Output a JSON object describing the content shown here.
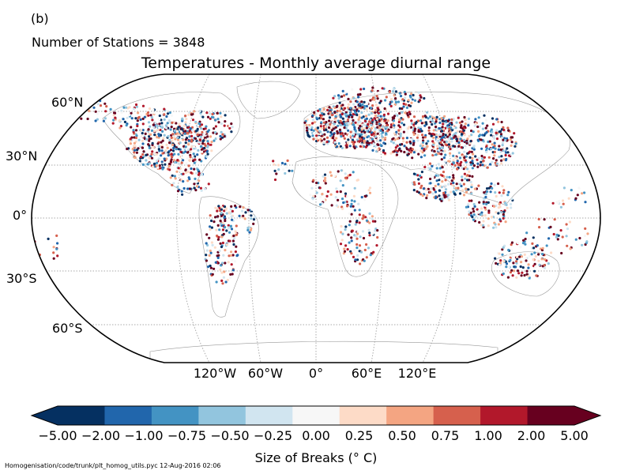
{
  "panel_label": "(b)",
  "stations_text": "Number of Stations = 3848",
  "title": "Temperatures - Monthly average diurnal range",
  "lat_labels": [
    "60°N",
    "30°N",
    "0°",
    "30°S",
    "60°S"
  ],
  "lon_labels": [
    "120°W",
    "60°W",
    "0°",
    "60°E",
    "120°E"
  ],
  "colorbar": {
    "label": "Size of Breaks (° C)",
    "ticks": [
      "−5.00",
      "−2.00",
      "−1.00",
      "−0.75",
      "−0.50",
      "−0.25",
      "0.00",
      "0.25",
      "0.50",
      "0.75",
      "1.00",
      "2.00",
      "5.00"
    ],
    "colors": [
      "#053061",
      "#2166ac",
      "#4393c3",
      "#92c5de",
      "#d1e5f0",
      "#f7f7f7",
      "#fddbc7",
      "#f4a582",
      "#d6604d",
      "#b2182b",
      "#67001f",
      "#67001f"
    ],
    "extend": "both"
  },
  "footer": "Homogenisation/code/trunk/plt_homog_utils.pyc   12-Aug-2016 02:06",
  "map": {
    "projection": "Robinson",
    "gridlines": "dotted",
    "station_count": 3848
  }
}
